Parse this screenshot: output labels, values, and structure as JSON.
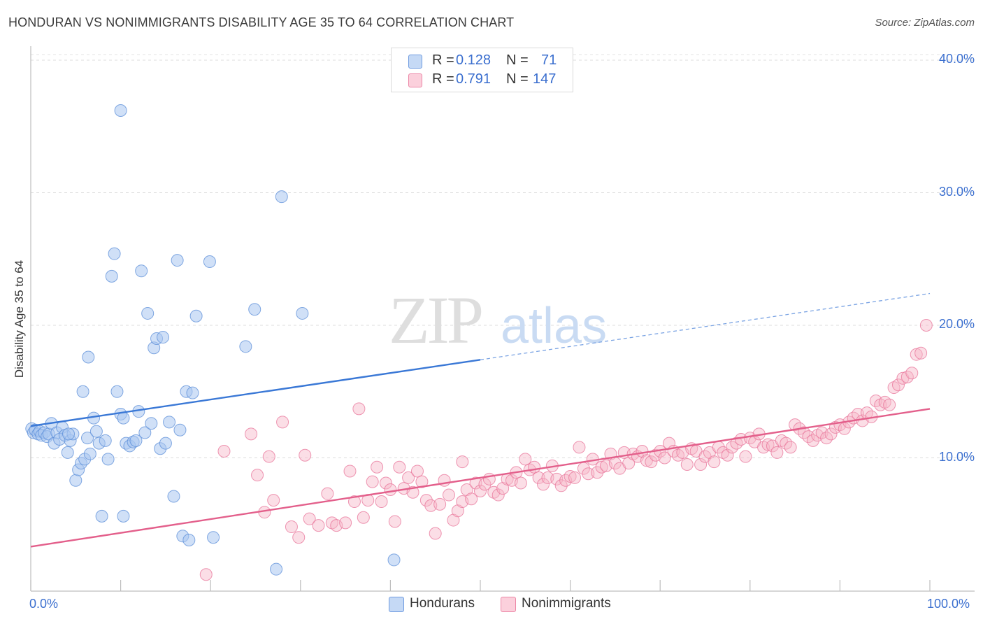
{
  "title": "HONDURAN VS NONIMMIGRANTS DISABILITY AGE 35 TO 64 CORRELATION CHART",
  "source": "Source: ZipAtlas.com",
  "watermark": {
    "zip": "ZIP",
    "atlas": "atlas"
  },
  "legend": {
    "rows": [
      {
        "r_label": "R =",
        "r_value": "0.128",
        "n_label": "N =",
        "n_value": "71",
        "color": "#a9c6f0"
      },
      {
        "r_label": "R =",
        "r_value": "0.791",
        "n_label": "N =",
        "n_value": "147",
        "color": "#f6b6c8"
      }
    ]
  },
  "bottom_legend": [
    {
      "label": "Hondurans",
      "color": "#a9c6f0"
    },
    {
      "label": "Nonimmigrants",
      "color": "#f6b6c8"
    }
  ],
  "chart_data": {
    "type": "scatter",
    "title": "HONDURAN VS NONIMMIGRANTS DISABILITY AGE 35 TO 64 CORRELATION CHART",
    "xlabel": "",
    "ylabel": "Disability Age 35 to 64",
    "xlim": [
      0,
      100
    ],
    "ylim": [
      0,
      42
    ],
    "x_tick_labels": [
      "0.0%",
      "100.0%"
    ],
    "y_ticks": [
      10,
      20,
      30,
      40
    ],
    "y_tick_labels": [
      "10.0%",
      "20.0%",
      "30.0%",
      "40.0%"
    ],
    "grid": true,
    "legend_position": "top-center",
    "series": [
      {
        "name": "Hondurans",
        "color": "#5b8ed8",
        "fill": "#a9c6f0",
        "trend": {
          "x": [
            0,
            50
          ],
          "y": [
            12.4,
            17.4
          ],
          "dashed_to": [
            100,
            22.4
          ]
        },
        "points": [
          [
            0.1,
            12.2
          ],
          [
            0.3,
            11.9
          ],
          [
            0.5,
            12.1
          ],
          [
            0.8,
            11.8
          ],
          [
            1.0,
            12.0
          ],
          [
            1.2,
            11.7
          ],
          [
            1.5,
            11.9
          ],
          [
            1.8,
            11.6
          ],
          [
            2.0,
            11.8
          ],
          [
            2.3,
            12.6
          ],
          [
            2.6,
            11.1
          ],
          [
            2.9,
            11.9
          ],
          [
            3.2,
            11.4
          ],
          [
            3.5,
            12.3
          ],
          [
            3.8,
            11.7
          ],
          [
            4.1,
            10.4
          ],
          [
            4.4,
            11.3
          ],
          [
            4.7,
            11.8
          ],
          [
            5.0,
            8.3
          ],
          [
            5.3,
            9.1
          ],
          [
            5.6,
            9.6
          ],
          [
            6.0,
            9.9
          ],
          [
            6.3,
            11.5
          ],
          [
            6.6,
            10.3
          ],
          [
            7.0,
            13.0
          ],
          [
            7.3,
            12.0
          ],
          [
            7.6,
            11.1
          ],
          [
            7.9,
            5.6
          ],
          [
            8.3,
            11.3
          ],
          [
            8.6,
            9.9
          ],
          [
            9.0,
            23.7
          ],
          [
            9.3,
            25.4
          ],
          [
            9.6,
            15.0
          ],
          [
            10.0,
            13.3
          ],
          [
            10.3,
            13.0
          ],
          [
            10.6,
            11.1
          ],
          [
            10.0,
            36.2
          ],
          [
            11.0,
            10.9
          ],
          [
            11.4,
            11.2
          ],
          [
            11.7,
            11.3
          ],
          [
            12.0,
            13.5
          ],
          [
            12.3,
            24.1
          ],
          [
            12.7,
            11.9
          ],
          [
            13.0,
            20.9
          ],
          [
            13.4,
            12.6
          ],
          [
            13.7,
            18.3
          ],
          [
            14.0,
            19.0
          ],
          [
            14.4,
            10.7
          ],
          [
            14.7,
            19.1
          ],
          [
            15.0,
            11.1
          ],
          [
            15.4,
            12.7
          ],
          [
            15.9,
            7.1
          ],
          [
            16.3,
            24.9
          ],
          [
            16.6,
            12.1
          ],
          [
            16.9,
            4.1
          ],
          [
            17.3,
            15.0
          ],
          [
            17.6,
            3.8
          ],
          [
            18.0,
            14.9
          ],
          [
            18.4,
            20.7
          ],
          [
            19.9,
            24.8
          ],
          [
            20.3,
            4.0
          ],
          [
            23.9,
            18.4
          ],
          [
            24.9,
            21.2
          ],
          [
            27.3,
            1.6
          ],
          [
            27.9,
            29.7
          ],
          [
            30.2,
            20.9
          ],
          [
            4.2,
            11.8
          ],
          [
            6.4,
            17.6
          ],
          [
            5.8,
            15.0
          ],
          [
            10.3,
            5.6
          ],
          [
            40.4,
            2.3
          ]
        ]
      },
      {
        "name": "Nonimmigrants",
        "color": "#e8749a",
        "fill": "#f6b6c8",
        "trend": {
          "x": [
            0,
            100
          ],
          "y": [
            3.3,
            13.7
          ]
        },
        "points": [
          [
            19.5,
            1.2
          ],
          [
            21.5,
            10.5
          ],
          [
            24.5,
            11.8
          ],
          [
            25.2,
            8.7
          ],
          [
            26.0,
            5.9
          ],
          [
            26.5,
            10.1
          ],
          [
            27.0,
            6.8
          ],
          [
            28.0,
            12.7
          ],
          [
            29.0,
            4.8
          ],
          [
            29.8,
            4.0
          ],
          [
            30.5,
            10.2
          ],
          [
            31.0,
            5.4
          ],
          [
            32.0,
            4.9
          ],
          [
            33.0,
            7.3
          ],
          [
            33.5,
            5.1
          ],
          [
            34.0,
            4.9
          ],
          [
            35.0,
            5.1
          ],
          [
            35.5,
            9.0
          ],
          [
            36.0,
            6.7
          ],
          [
            36.5,
            13.7
          ],
          [
            37.0,
            5.5
          ],
          [
            37.5,
            6.8
          ],
          [
            38.0,
            8.2
          ],
          [
            38.5,
            9.3
          ],
          [
            39.0,
            6.7
          ],
          [
            39.5,
            8.1
          ],
          [
            40.0,
            7.6
          ],
          [
            40.5,
            5.2
          ],
          [
            41.0,
            9.3
          ],
          [
            41.5,
            7.7
          ],
          [
            42.0,
            8.5
          ],
          [
            42.5,
            7.4
          ],
          [
            43.0,
            9.0
          ],
          [
            43.5,
            8.2
          ],
          [
            44.0,
            6.8
          ],
          [
            44.5,
            6.4
          ],
          [
            45.0,
            4.3
          ],
          [
            45.5,
            6.5
          ],
          [
            46.0,
            8.3
          ],
          [
            46.5,
            7.2
          ],
          [
            47.0,
            5.3
          ],
          [
            47.5,
            6.0
          ],
          [
            48.0,
            6.7
          ],
          [
            48.5,
            7.6
          ],
          [
            49.0,
            6.9
          ],
          [
            49.5,
            8.1
          ],
          [
            50.0,
            7.5
          ],
          [
            50.5,
            8.0
          ],
          [
            51.0,
            8.4
          ],
          [
            51.5,
            7.4
          ],
          [
            52.0,
            7.2
          ],
          [
            52.5,
            7.7
          ],
          [
            53.0,
            8.4
          ],
          [
            53.5,
            8.3
          ],
          [
            54.0,
            8.9
          ],
          [
            54.5,
            8.1
          ],
          [
            55.0,
            9.9
          ],
          [
            55.5,
            9.1
          ],
          [
            56.0,
            9.3
          ],
          [
            56.5,
            8.5
          ],
          [
            57.0,
            8.0
          ],
          [
            57.5,
            8.5
          ],
          [
            58.0,
            9.4
          ],
          [
            58.5,
            8.4
          ],
          [
            59.0,
            7.9
          ],
          [
            59.5,
            8.3
          ],
          [
            60.0,
            8.6
          ],
          [
            60.5,
            8.5
          ],
          [
            61.0,
            10.8
          ],
          [
            61.5,
            9.2
          ],
          [
            62.0,
            8.8
          ],
          [
            62.5,
            9.9
          ],
          [
            63.0,
            8.9
          ],
          [
            63.5,
            9.3
          ],
          [
            64.0,
            9.4
          ],
          [
            64.5,
            10.3
          ],
          [
            65.0,
            9.6
          ],
          [
            65.5,
            9.2
          ],
          [
            66.0,
            10.4
          ],
          [
            66.5,
            9.6
          ],
          [
            67.0,
            10.3
          ],
          [
            67.5,
            10.1
          ],
          [
            68.0,
            10.5
          ],
          [
            68.5,
            9.8
          ],
          [
            69.0,
            9.7
          ],
          [
            69.5,
            10.2
          ],
          [
            70.0,
            10.5
          ],
          [
            70.5,
            10.0
          ],
          [
            71.0,
            11.1
          ],
          [
            71.5,
            10.5
          ],
          [
            72.0,
            10.2
          ],
          [
            72.5,
            10.4
          ],
          [
            73.0,
            9.5
          ],
          [
            73.5,
            10.7
          ],
          [
            74.0,
            10.5
          ],
          [
            74.5,
            9.5
          ],
          [
            75.0,
            10.1
          ],
          [
            75.5,
            10.4
          ],
          [
            76.0,
            9.7
          ],
          [
            76.5,
            10.8
          ],
          [
            77.0,
            10.4
          ],
          [
            77.5,
            10.2
          ],
          [
            78.0,
            10.8
          ],
          [
            78.5,
            11.1
          ],
          [
            79.0,
            11.4
          ],
          [
            79.5,
            10.1
          ],
          [
            80.0,
            11.5
          ],
          [
            80.5,
            11.2
          ],
          [
            81.0,
            11.8
          ],
          [
            81.5,
            10.8
          ],
          [
            82.0,
            11.0
          ],
          [
            82.5,
            10.9
          ],
          [
            83.0,
            10.4
          ],
          [
            83.5,
            11.3
          ],
          [
            84.0,
            11.1
          ],
          [
            84.5,
            10.8
          ],
          [
            85.0,
            12.5
          ],
          [
            85.5,
            12.2
          ],
          [
            86.0,
            11.9
          ],
          [
            86.5,
            11.6
          ],
          [
            87.0,
            11.3
          ],
          [
            87.5,
            11.7
          ],
          [
            88.0,
            11.9
          ],
          [
            88.5,
            11.5
          ],
          [
            89.0,
            11.8
          ],
          [
            89.5,
            12.3
          ],
          [
            90.0,
            12.5
          ],
          [
            90.5,
            12.2
          ],
          [
            91.0,
            12.7
          ],
          [
            91.5,
            13.0
          ],
          [
            92.0,
            13.3
          ],
          [
            92.5,
            12.8
          ],
          [
            93.0,
            13.4
          ],
          [
            93.5,
            13.1
          ],
          [
            94.0,
            14.3
          ],
          [
            94.5,
            14.0
          ],
          [
            95.0,
            14.2
          ],
          [
            95.5,
            14.0
          ],
          [
            96.0,
            15.3
          ],
          [
            96.5,
            15.5
          ],
          [
            97.0,
            16.0
          ],
          [
            97.5,
            16.1
          ],
          [
            98.0,
            16.4
          ],
          [
            98.5,
            17.8
          ],
          [
            99.0,
            17.9
          ],
          [
            99.6,
            20.0
          ],
          [
            48.0,
            9.7
          ]
        ]
      }
    ]
  }
}
